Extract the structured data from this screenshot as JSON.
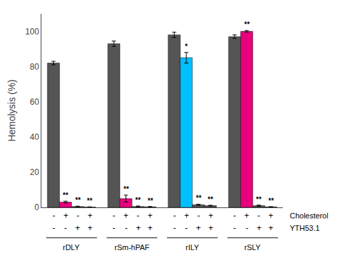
{
  "chart_data": {
    "type": "bar",
    "categories": [
      "rDLY",
      "rSm-hPAF",
      "rILY",
      "rSLY"
    ],
    "ylabel": "Hemolysis (%)",
    "ylim": [
      0,
      110
    ],
    "yticks": [
      0,
      20,
      40,
      60,
      80,
      100
    ],
    "grid": false,
    "series": [
      {
        "values": [
          82,
          93,
          98,
          97
        ],
        "errors": [
          1.0,
          1.5,
          1.5,
          1.0
        ],
        "colors": [
          "#555555",
          "#555555",
          "#555555",
          "#555555"
        ],
        "significance": [
          null,
          null,
          null,
          null
        ]
      },
      {
        "values": [
          3,
          5,
          85,
          100
        ],
        "errors": [
          0.5,
          2.0,
          3.0,
          0.5
        ],
        "colors": [
          "#E8007D",
          "#E8007D",
          "#00BFFF",
          "#E8007D"
        ],
        "significance": [
          "**",
          "**",
          "*",
          "**"
        ]
      },
      {
        "values": [
          0.5,
          0.5,
          1.5,
          1.0
        ],
        "errors": [
          0.2,
          0.3,
          0.3,
          0.3
        ],
        "colors": [
          "#555555",
          "#555555",
          "#555555",
          "#555555"
        ],
        "significance": [
          "**",
          "**",
          "**",
          "**"
        ]
      },
      {
        "values": [
          0.2,
          0.3,
          1.0,
          0.3
        ],
        "errors": [
          0.1,
          0.2,
          0.2,
          0.1
        ],
        "colors": [
          "#555555",
          "#555555",
          "#555555",
          "#555555"
        ],
        "significance": [
          "**",
          "**",
          "**",
          "**"
        ]
      }
    ],
    "sign_rows": [
      {
        "label": "Cholesterol",
        "signs": [
          "-",
          "+",
          "-",
          "+"
        ]
      },
      {
        "label": "YTH53.1",
        "signs": [
          "-",
          "-",
          "+",
          "+"
        ]
      }
    ]
  }
}
